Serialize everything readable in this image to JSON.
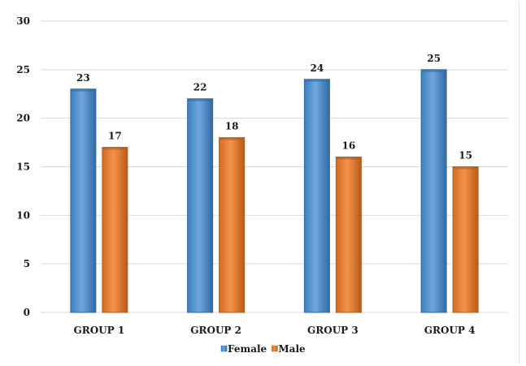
{
  "chart_data": {
    "type": "bar",
    "categories": [
      "GROUP 1",
      "GROUP 2",
      "GROUP 3",
      "GROUP 4"
    ],
    "series": [
      {
        "name": "Female",
        "values": [
          23,
          22,
          24,
          25
        ],
        "color": "#5b9bd5",
        "color_dark": "#2f6aa6"
      },
      {
        "name": "Male",
        "values": [
          17,
          18,
          16,
          15
        ],
        "color": "#ed7d31",
        "color_dark": "#b85a18"
      }
    ],
    "title": "",
    "xlabel": "",
    "ylabel": "",
    "ylim": [
      0,
      30
    ],
    "yticks": [
      0,
      5,
      10,
      15,
      20,
      25,
      30
    ],
    "grid": true,
    "legend_position": "bottom",
    "data_labels": true
  }
}
